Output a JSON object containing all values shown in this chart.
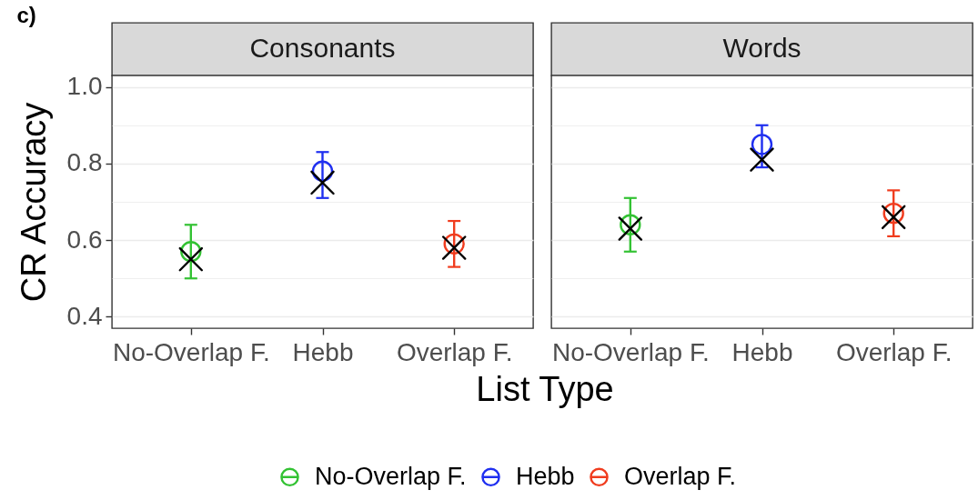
{
  "chart_data": [
    {
      "type": "scatter",
      "title": "Consonants",
      "annotations": [
        "c)"
      ],
      "xlabel": "List Type",
      "ylabel": "CR Accuracy",
      "categories": [
        "No-Overlap F.",
        "Hebb",
        "Overlap F."
      ],
      "ylim": [
        0.37,
        1.03
      ],
      "yticks": [
        0.4,
        {
          "value": 0.5,
          "label": null
        },
        0.6,
        {
          "value": 0.7,
          "label": null
        },
        0.8,
        {
          "value": 0.9,
          "label": null
        },
        {
          "value": 1,
          "label": "1.0"
        }
      ],
      "grid": "y",
      "legend": "bottom",
      "series": [
        {
          "name": "No-Overlap F.",
          "color": "#33c233",
          "marker": "circle",
          "values": [
            0.57,
            null,
            null
          ],
          "errors": [
            [
              0.5,
              0.64
            ],
            null,
            null
          ]
        },
        {
          "name": "Hebb",
          "color": "#1f2ff0",
          "marker": "circle",
          "values": [
            null,
            0.78,
            null
          ],
          "errors": [
            null,
            [
              0.71,
              0.83
            ],
            null
          ]
        },
        {
          "name": "Overlap F.",
          "color": "#f03c1e",
          "marker": "circle",
          "values": [
            null,
            null,
            0.59
          ],
          "errors": [
            null,
            null,
            [
              0.53,
              0.65
            ]
          ]
        },
        {
          "color": "#000000",
          "marker": "cross",
          "values": [
            0.55,
            0.75,
            0.58
          ]
        }
      ]
    },
    {
      "type": "scatter",
      "title": "Words",
      "categories": [
        "No-Overlap F.",
        "Hebb",
        "Overlap F."
      ],
      "ylim": [
        0.37,
        1.03
      ],
      "yticks": [
        0.4,
        {
          "value": 0.5,
          "label": null
        },
        0.6,
        {
          "value": 0.7,
          "label": null
        },
        0.8,
        {
          "value": 0.9,
          "label": null
        },
        1
      ],
      "tick_labels": "x",
      "grid": "y",
      "legend": "bottom",
      "series": [
        {
          "name": "No-Overlap F.",
          "color": "#33c233",
          "marker": "circle",
          "values": [
            0.64,
            null,
            null
          ],
          "errors": [
            [
              0.57,
              0.71
            ],
            null,
            null
          ]
        },
        {
          "name": "Hebb",
          "color": "#1f2ff0",
          "marker": "circle",
          "values": [
            null,
            0.85,
            null
          ],
          "errors": [
            null,
            [
              0.79,
              0.9
            ],
            null
          ]
        },
        {
          "name": "Overlap F.",
          "color": "#f03c1e",
          "marker": "circle",
          "values": [
            null,
            null,
            0.67
          ],
          "errors": [
            null,
            null,
            [
              0.61,
              0.73
            ]
          ]
        },
        {
          "color": "#000000",
          "marker": "cross",
          "values": [
            0.63,
            0.81,
            0.66
          ]
        }
      ]
    }
  ]
}
